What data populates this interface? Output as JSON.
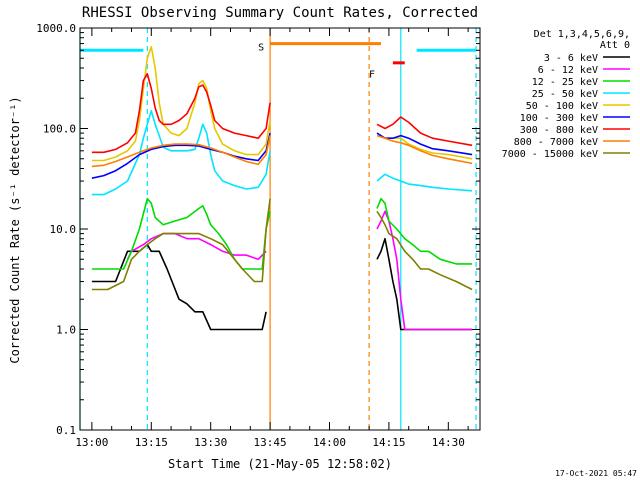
{
  "chart_data": {
    "type": "line",
    "title": "RHESSI Observing Summary Count Rates, Corrected",
    "xlabel": "Start Time (21-May-05 12:58:02)",
    "ylabel": "Corrected Count Rate (s⁻¹ detector⁻¹)",
    "yscale": "log",
    "ylim": [
      0.1,
      1000
    ],
    "xlim_minutes": [
      -3,
      98
    ],
    "x_ticks": [
      {
        "label": "13:00",
        "t": 0
      },
      {
        "label": "13:15",
        "t": 15
      },
      {
        "label": "13:30",
        "t": 30
      },
      {
        "label": "13:45",
        "t": 45
      },
      {
        "label": "14:00",
        "t": 60
      },
      {
        "label": "14:15",
        "t": 75
      },
      {
        "label": "14:30",
        "t": 90
      }
    ],
    "y_ticks": [
      "0.1",
      "1.0",
      "10.0",
      "100.0",
      "1000.0"
    ],
    "legend_header": [
      "Det 1,3,4,5,6,9,",
      "Att 0"
    ],
    "legend_position": "right",
    "markers": [
      {
        "label": "S",
        "t": 45,
        "color": "#ff7f00"
      },
      {
        "label": "F",
        "t": 73,
        "color": "#ff7f00"
      }
    ],
    "bars": [
      {
        "t": [
          -3,
          13
        ],
        "y": 600,
        "color": "#00e5ff"
      },
      {
        "t": [
          45,
          73
        ],
        "y": 700,
        "color": "#ff7f00"
      },
      {
        "t": [
          76,
          79
        ],
        "y": 450,
        "color": "#ff0000"
      },
      {
        "t": [
          82,
          97
        ],
        "y": 600,
        "color": "#00e5ff"
      }
    ],
    "vertical_lines": [
      {
        "t": -3,
        "color": "#00e5ff",
        "style": "solid"
      },
      {
        "t": 14,
        "color": "#00e5ff",
        "style": "dashed"
      },
      {
        "t": 45,
        "color": "#ff7f00",
        "style": "solid"
      },
      {
        "t": 70,
        "color": "#ff7f00",
        "style": "dashed"
      },
      {
        "t": 78,
        "color": "#00e5ff",
        "style": "solid"
      },
      {
        "t": 97,
        "color": "#00e5ff",
        "style": "dashed"
      }
    ],
    "series": [
      {
        "name": "3 - 6 keV",
        "color": "#000000",
        "points": [
          [
            0,
            3
          ],
          [
            6,
            3
          ],
          [
            9,
            6
          ],
          [
            12,
            6
          ],
          [
            14,
            7
          ],
          [
            15,
            6
          ],
          [
            17,
            6
          ],
          [
            19,
            4
          ],
          [
            22,
            2
          ],
          [
            24,
            1.8
          ],
          [
            26,
            1.5
          ],
          [
            28,
            1.5
          ],
          [
            30,
            1
          ],
          [
            33,
            1
          ],
          [
            38,
            1
          ],
          [
            41,
            1
          ],
          [
            43,
            1
          ],
          [
            44,
            1.5
          ],
          null,
          [
            72,
            5
          ],
          [
            73,
            6
          ],
          [
            74,
            8
          ],
          [
            75,
            5
          ],
          [
            76,
            3
          ],
          [
            77,
            2
          ],
          [
            78,
            1
          ],
          [
            84,
            1
          ],
          [
            90,
            1
          ],
          [
            96,
            1
          ]
        ]
      },
      {
        "name": "6 - 12 keV",
        "color": "#ff00ff",
        "points": [
          [
            9,
            5
          ],
          [
            10,
            6
          ],
          [
            13,
            7
          ],
          [
            15,
            8
          ],
          [
            18,
            9
          ],
          [
            21,
            9
          ],
          [
            24,
            8
          ],
          [
            27,
            8
          ],
          [
            30,
            7
          ],
          [
            33,
            6
          ],
          [
            36,
            5.5
          ],
          [
            39,
            5.5
          ],
          [
            42,
            5
          ],
          [
            44,
            6
          ],
          null,
          [
            72,
            10
          ],
          [
            73,
            12
          ],
          [
            74,
            15
          ],
          [
            75,
            12
          ],
          [
            76,
            8
          ],
          [
            77,
            5
          ],
          [
            78,
            2
          ],
          [
            79,
            1
          ],
          [
            84,
            1
          ],
          [
            90,
            1
          ],
          [
            96,
            1
          ]
        ]
      },
      {
        "name": "12 - 25 keV",
        "color": "#00dd00",
        "points": [
          [
            0,
            4
          ],
          [
            4,
            4
          ],
          [
            8,
            4
          ],
          [
            10,
            6
          ],
          [
            12,
            10
          ],
          [
            14,
            20
          ],
          [
            15,
            18
          ],
          [
            16,
            13
          ],
          [
            18,
            11
          ],
          [
            21,
            12
          ],
          [
            24,
            13
          ],
          [
            27,
            16
          ],
          [
            28,
            17
          ],
          [
            29,
            14
          ],
          [
            30,
            11
          ],
          [
            32,
            9
          ],
          [
            34,
            7
          ],
          [
            36,
            5
          ],
          [
            38,
            4
          ],
          [
            41,
            4
          ],
          [
            43,
            4
          ],
          [
            44,
            10
          ],
          [
            45,
            15
          ],
          null,
          [
            72,
            16
          ],
          [
            73,
            20
          ],
          [
            74,
            18
          ],
          [
            75,
            12
          ],
          [
            77,
            10
          ],
          [
            79,
            8
          ],
          [
            81,
            7
          ],
          [
            83,
            6
          ],
          [
            85,
            6
          ],
          [
            88,
            5
          ],
          [
            92,
            4.5
          ],
          [
            96,
            4.5
          ]
        ]
      },
      {
        "name": "25 - 50 keV",
        "color": "#00e5ff",
        "points": [
          [
            0,
            22
          ],
          [
            3,
            22
          ],
          [
            6,
            25
          ],
          [
            9,
            30
          ],
          [
            12,
            55
          ],
          [
            13,
            80
          ],
          [
            14,
            110
          ],
          [
            15,
            150
          ],
          [
            16,
            110
          ],
          [
            17,
            85
          ],
          [
            18,
            65
          ],
          [
            20,
            60
          ],
          [
            22,
            60
          ],
          [
            24,
            60
          ],
          [
            26,
            62
          ],
          [
            27,
            80
          ],
          [
            28,
            110
          ],
          [
            29,
            90
          ],
          [
            30,
            55
          ],
          [
            31,
            38
          ],
          [
            33,
            30
          ],
          [
            36,
            27
          ],
          [
            39,
            25
          ],
          [
            42,
            26
          ],
          [
            44,
            35
          ],
          [
            45,
            60
          ],
          null,
          [
            72,
            30
          ],
          [
            74,
            35
          ],
          [
            76,
            32
          ],
          [
            78,
            30
          ],
          [
            80,
            28
          ],
          [
            83,
            27
          ],
          [
            86,
            26
          ],
          [
            90,
            25
          ],
          [
            96,
            24
          ]
        ]
      },
      {
        "name": "50 - 100 keV",
        "color": "#e6c800",
        "points": [
          [
            0,
            48
          ],
          [
            3,
            48
          ],
          [
            6,
            52
          ],
          [
            9,
            60
          ],
          [
            11,
            75
          ],
          [
            12,
            120
          ],
          [
            13,
            250
          ],
          [
            14,
            500
          ],
          [
            15,
            650
          ],
          [
            16,
            400
          ],
          [
            17,
            180
          ],
          [
            18,
            110
          ],
          [
            20,
            90
          ],
          [
            22,
            85
          ],
          [
            24,
            100
          ],
          [
            26,
            180
          ],
          [
            27,
            280
          ],
          [
            28,
            300
          ],
          [
            29,
            250
          ],
          [
            30,
            150
          ],
          [
            31,
            100
          ],
          [
            33,
            70
          ],
          [
            36,
            60
          ],
          [
            39,
            55
          ],
          [
            42,
            55
          ],
          [
            44,
            70
          ],
          [
            45,
            120
          ],
          null,
          [
            72,
            90
          ],
          [
            74,
            80
          ],
          [
            76,
            80
          ],
          [
            78,
            80
          ],
          [
            80,
            70
          ],
          [
            83,
            62
          ],
          [
            86,
            57
          ],
          [
            90,
            55
          ],
          [
            96,
            50
          ]
        ]
      },
      {
        "name": "100 - 300 keV",
        "color": "#0000ff",
        "points": [
          [
            0,
            32
          ],
          [
            3,
            34
          ],
          [
            6,
            38
          ],
          [
            9,
            45
          ],
          [
            12,
            55
          ],
          [
            15,
            62
          ],
          [
            18,
            66
          ],
          [
            21,
            68
          ],
          [
            24,
            68
          ],
          [
            27,
            67
          ],
          [
            30,
            62
          ],
          [
            33,
            58
          ],
          [
            36,
            53
          ],
          [
            39,
            50
          ],
          [
            42,
            48
          ],
          [
            44,
            60
          ],
          [
            45,
            90
          ],
          null,
          [
            72,
            90
          ],
          [
            74,
            80
          ],
          [
            76,
            80
          ],
          [
            78,
            85
          ],
          [
            80,
            80
          ],
          [
            83,
            70
          ],
          [
            86,
            63
          ],
          [
            90,
            60
          ],
          [
            96,
            55
          ]
        ]
      },
      {
        "name": "300 - 800 keV",
        "color": "#ff0000",
        "points": [
          [
            0,
            58
          ],
          [
            3,
            58
          ],
          [
            6,
            62
          ],
          [
            9,
            72
          ],
          [
            11,
            90
          ],
          [
            12,
            150
          ],
          [
            13,
            300
          ],
          [
            14,
            350
          ],
          [
            15,
            250
          ],
          [
            16,
            160
          ],
          [
            17,
            120
          ],
          [
            18,
            110
          ],
          [
            20,
            110
          ],
          [
            22,
            120
          ],
          [
            24,
            140
          ],
          [
            26,
            200
          ],
          [
            27,
            260
          ],
          [
            28,
            270
          ],
          [
            29,
            230
          ],
          [
            30,
            170
          ],
          [
            31,
            120
          ],
          [
            33,
            100
          ],
          [
            36,
            90
          ],
          [
            39,
            85
          ],
          [
            42,
            80
          ],
          [
            44,
            100
          ],
          [
            45,
            180
          ],
          null,
          [
            72,
            110
          ],
          [
            74,
            100
          ],
          [
            76,
            110
          ],
          [
            78,
            130
          ],
          [
            80,
            115
          ],
          [
            83,
            90
          ],
          [
            86,
            80
          ],
          [
            90,
            75
          ],
          [
            96,
            68
          ]
        ]
      },
      {
        "name": "800 - 7000 keV",
        "color": "#ff7f00",
        "points": [
          [
            0,
            42
          ],
          [
            3,
            43
          ],
          [
            6,
            47
          ],
          [
            9,
            52
          ],
          [
            12,
            58
          ],
          [
            15,
            64
          ],
          [
            18,
            68
          ],
          [
            21,
            70
          ],
          [
            24,
            70
          ],
          [
            27,
            69
          ],
          [
            30,
            64
          ],
          [
            33,
            58
          ],
          [
            36,
            52
          ],
          [
            39,
            47
          ],
          [
            42,
            44
          ],
          [
            44,
            55
          ],
          [
            45,
            85
          ],
          null,
          [
            72,
            85
          ],
          [
            74,
            80
          ],
          [
            76,
            75
          ],
          [
            78,
            72
          ],
          [
            80,
            68
          ],
          [
            83,
            60
          ],
          [
            86,
            54
          ],
          [
            90,
            50
          ],
          [
            96,
            45
          ]
        ]
      },
      {
        "name": "7000 - 15000 keV",
        "color": "#808000",
        "points": [
          [
            0,
            2.5
          ],
          [
            4,
            2.5
          ],
          [
            8,
            3
          ],
          [
            10,
            5
          ],
          [
            12,
            6
          ],
          [
            14,
            7
          ],
          [
            16,
            8
          ],
          [
            18,
            9
          ],
          [
            21,
            9
          ],
          [
            24,
            9
          ],
          [
            27,
            9
          ],
          [
            30,
            8
          ],
          [
            33,
            7
          ],
          [
            36,
            5
          ],
          [
            38,
            4
          ],
          [
            41,
            3
          ],
          [
            43,
            3
          ],
          [
            44,
            10
          ],
          [
            45,
            20
          ],
          null,
          [
            72,
            15
          ],
          [
            73,
            13
          ],
          [
            74,
            11
          ],
          [
            75,
            9
          ],
          [
            77,
            8
          ],
          [
            79,
            6
          ],
          [
            81,
            5
          ],
          [
            83,
            4
          ],
          [
            85,
            4
          ],
          [
            88,
            3.5
          ],
          [
            92,
            3
          ],
          [
            96,
            2.5
          ]
        ]
      }
    ]
  },
  "footer_timestamp": "17-Oct-2021 05:47"
}
